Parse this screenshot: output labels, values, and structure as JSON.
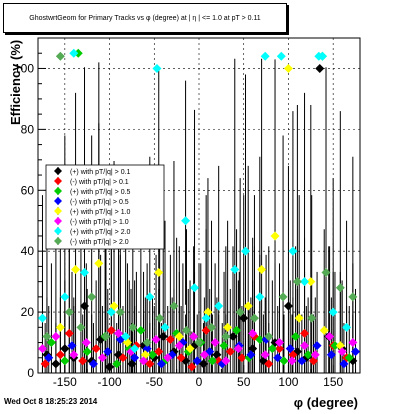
{
  "title": "GhostwrtGeom for Primary Tracks vs φ (degree) at |  η | <= 1.0 at pT > 0.11",
  "footer": {
    "date": "Wed Oct  8 18:25:23 2014"
  },
  "chart_data": {
    "type": "scatter",
    "title": "GhostwrtGeom for Primary Tracks vs φ (degree) at |  η | <= 1.0 at pT > 0.11",
    "xlabel": "φ (degree)",
    "ylabel": "Efficiency (%)",
    "xlim": [
      -180,
      180
    ],
    "ylim": [
      0,
      110
    ],
    "xticks": [
      -150,
      -100,
      -50,
      0,
      50,
      100,
      150
    ],
    "yticks": [
      0,
      20,
      40,
      60,
      80,
      100
    ],
    "grid": true,
    "legend_position": "left-middle",
    "series": [
      {
        "name": "(+) with pT/|q| > 0.1",
        "color": "#000000",
        "marker": "diamond",
        "points": [
          [
            -170,
            6
          ],
          [
            -160,
            3
          ],
          [
            -150,
            8
          ],
          [
            -140,
            5
          ],
          [
            -128,
            22
          ],
          [
            -120,
            4
          ],
          [
            -110,
            11
          ],
          [
            -100,
            2
          ],
          [
            -90,
            6
          ],
          [
            -75,
            3
          ],
          [
            -62,
            9
          ],
          [
            -50,
            5
          ],
          [
            -40,
            12
          ],
          [
            -28,
            7
          ],
          [
            -15,
            4
          ],
          [
            -5,
            9
          ],
          [
            5,
            3
          ],
          [
            20,
            6
          ],
          [
            38,
            12
          ],
          [
            50,
            18
          ],
          [
            60,
            8
          ],
          [
            72,
            4
          ],
          [
            85,
            10
          ],
          [
            100,
            22
          ],
          [
            110,
            7
          ],
          [
            120,
            5
          ],
          [
            135,
            100
          ],
          [
            145,
            12
          ],
          [
            160,
            8
          ],
          [
            172,
            4
          ]
        ]
      },
      {
        "name": "(-) with pT/|q| > 0.1",
        "color": "#ff0000",
        "marker": "diamond",
        "points": [
          [
            -172,
            3
          ],
          [
            -155,
            6
          ],
          [
            -145,
            13
          ],
          [
            -130,
            4
          ],
          [
            -115,
            8
          ],
          [
            -98,
            14
          ],
          [
            -85,
            5
          ],
          [
            -70,
            9
          ],
          [
            -55,
            3
          ],
          [
            -45,
            7
          ],
          [
            -32,
            11
          ],
          [
            -20,
            5
          ],
          [
            -8,
            2
          ],
          [
            8,
            14
          ],
          [
            22,
            4
          ],
          [
            35,
            7
          ],
          [
            48,
            5
          ],
          [
            62,
            12
          ],
          [
            78,
            3
          ],
          [
            90,
            8
          ],
          [
            105,
            6
          ],
          [
            118,
            13
          ],
          [
            128,
            4
          ],
          [
            150,
            9
          ],
          [
            165,
            5
          ]
        ]
      },
      {
        "name": "(+) with pT/|q| > 0.5",
        "color": "#00cc00",
        "marker": "diamond",
        "points": [
          [
            -165,
            10
          ],
          [
            -150,
            4
          ],
          [
            -135,
            105
          ],
          [
            -125,
            7
          ],
          [
            -105,
            12
          ],
          [
            -92,
            3
          ],
          [
            -78,
            8
          ],
          [
            -65,
            14
          ],
          [
            -52,
            6
          ],
          [
            -38,
            4
          ],
          [
            -25,
            13
          ],
          [
            -12,
            7
          ],
          [
            2,
            10
          ],
          [
            15,
            4
          ],
          [
            28,
            9
          ],
          [
            42,
            14
          ],
          [
            56,
            5
          ],
          [
            68,
            11
          ],
          [
            82,
            8
          ],
          [
            95,
            4
          ],
          [
            108,
            12
          ],
          [
            122,
            6
          ],
          [
            138,
            104
          ],
          [
            152,
            9
          ],
          [
            168,
            5
          ]
        ]
      },
      {
        "name": "(-) with pT/|q| > 0.5",
        "color": "#0000ff",
        "marker": "diamond",
        "points": [
          [
            -168,
            5
          ],
          [
            -142,
            9
          ],
          [
            -118,
            3
          ],
          [
            -102,
            7
          ],
          [
            -88,
            11
          ],
          [
            -72,
            5
          ],
          [
            -58,
            8
          ],
          [
            -42,
            3
          ],
          [
            -30,
            6
          ],
          [
            -18,
            10
          ],
          [
            -2,
            4
          ],
          [
            12,
            7
          ],
          [
            26,
            3
          ],
          [
            45,
            9
          ],
          [
            58,
            6
          ],
          [
            75,
            11
          ],
          [
            88,
            5
          ],
          [
            102,
            8
          ],
          [
            115,
            4
          ],
          [
            132,
            9
          ],
          [
            148,
            6
          ],
          [
            162,
            3
          ],
          [
            175,
            7
          ]
        ]
      },
      {
        "name": "(+) with pT/|q| > 1.0",
        "color": "#ffff00",
        "marker": "diamond",
        "points": [
          [
            -155,
            15
          ],
          [
            -138,
            34
          ],
          [
            -112,
            36
          ],
          [
            -95,
            22
          ],
          [
            -80,
            10
          ],
          [
            -60,
            6
          ],
          [
            -45,
            33
          ],
          [
            -22,
            12
          ],
          [
            -10,
            8
          ],
          [
            10,
            20
          ],
          [
            32,
            15
          ],
          [
            55,
            22
          ],
          [
            70,
            34
          ],
          [
            85,
            45
          ],
          [
            100,
            100
          ],
          [
            112,
            18
          ],
          [
            125,
            30
          ],
          [
            140,
            14
          ],
          [
            158,
            9
          ]
        ]
      },
      {
        "name": "(-) with pT/|q| > 1.0",
        "color": "#ff00ff",
        "marker": "diamond",
        "points": [
          [
            -175,
            8
          ],
          [
            -160,
            12
          ],
          [
            -140,
            6
          ],
          [
            -126,
            10
          ],
          [
            -108,
            5
          ],
          [
            -90,
            13
          ],
          [
            -76,
            7
          ],
          [
            -62,
            4
          ],
          [
            -48,
            11
          ],
          [
            -35,
            5
          ],
          [
            -22,
            9
          ],
          [
            -6,
            12
          ],
          [
            6,
            6
          ],
          [
            18,
            10
          ],
          [
            30,
            4
          ],
          [
            44,
            8
          ],
          [
            60,
            13
          ],
          [
            74,
            6
          ],
          [
            90,
            10
          ],
          [
            104,
            4
          ],
          [
            118,
            9
          ],
          [
            130,
            6
          ],
          [
            146,
            12
          ],
          [
            160,
            7
          ],
          [
            172,
            10
          ]
        ]
      },
      {
        "name": "(+) with pT/|q| > 2.0",
        "color": "#00ffff",
        "marker": "diamond",
        "points": [
          [
            -175,
            18
          ],
          [
            -150,
            25
          ],
          [
            -140,
            105
          ],
          [
            -128,
            33
          ],
          [
            -112,
            44
          ],
          [
            -98,
            20
          ],
          [
            -82,
            12
          ],
          [
            -72,
            8
          ],
          [
            -55,
            25
          ],
          [
            -47,
            100
          ],
          [
            -38,
            15
          ],
          [
            -15,
            50
          ],
          [
            -5,
            28
          ],
          [
            8,
            18
          ],
          [
            22,
            22
          ],
          [
            40,
            34
          ],
          [
            52,
            40
          ],
          [
            68,
            25
          ],
          [
            74,
            104
          ],
          [
            92,
            104
          ],
          [
            105,
            40
          ],
          [
            118,
            30
          ],
          [
            134,
            104
          ],
          [
            138,
            104
          ],
          [
            150,
            20
          ],
          [
            165,
            15
          ]
        ]
      },
      {
        "name": "(-) with pT/|q| > 2.0",
        "color": "#55aa55",
        "marker": "diamond",
        "points": [
          [
            -170,
            12
          ],
          [
            -155,
            104
          ],
          [
            -145,
            20
          ],
          [
            -132,
            15
          ],
          [
            -120,
            25
          ],
          [
            -104,
            12
          ],
          [
            -88,
            20
          ],
          [
            -74,
            15
          ],
          [
            -58,
            10
          ],
          [
            -44,
            18
          ],
          [
            -28,
            22
          ],
          [
            -14,
            14
          ],
          [
            0,
            10
          ],
          [
            14,
            15
          ],
          [
            30,
            12
          ],
          [
            46,
            20
          ],
          [
            62,
            18
          ],
          [
            78,
            12
          ],
          [
            94,
            25
          ],
          [
            110,
            30
          ],
          [
            126,
            18
          ],
          [
            142,
            33
          ],
          [
            158,
            28
          ],
          [
            172,
            25
          ]
        ]
      }
    ]
  }
}
